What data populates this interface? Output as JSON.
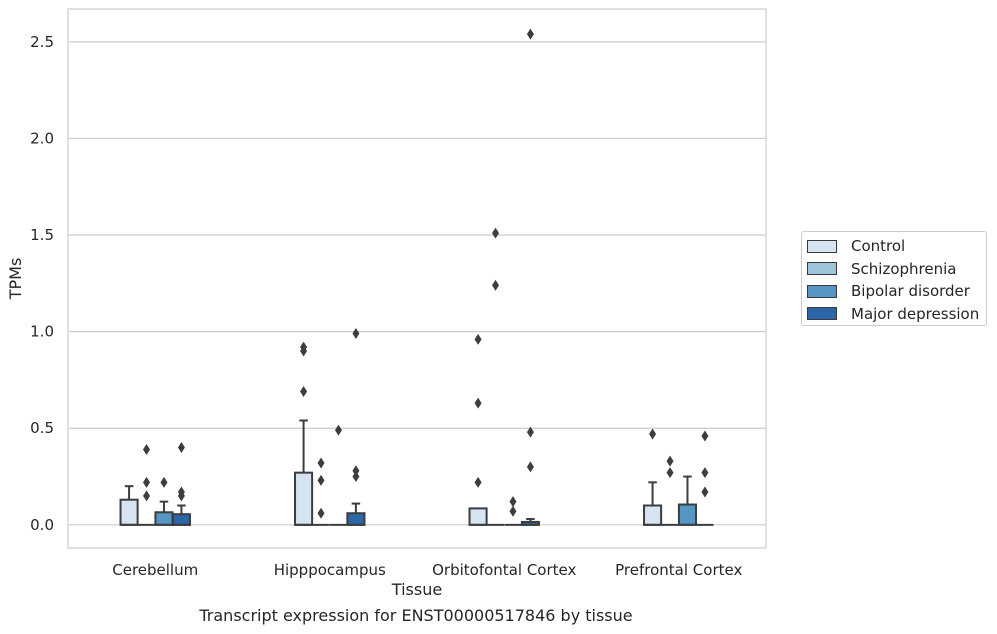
{
  "caption": "Transcript expression for ENST00000517846 by tissue",
  "chart_data": {
    "type": "box",
    "xlabel": "Tissue",
    "ylabel": "TPMs",
    "categories": [
      "Cerebellum",
      "Hipppocampus",
      "Orbitofontal Cortex",
      "Prefrontal Cortex"
    ],
    "ylim": [
      -0.12,
      2.67
    ],
    "yticks": [
      "0.0",
      "0.5",
      "1.0",
      "1.5",
      "2.0",
      "2.5"
    ],
    "grid": true,
    "legend_placement": "center-right, outside plot",
    "series": [
      {
        "name": "Control",
        "color": "#d6e4f2",
        "boxes": [
          {
            "q1": 0.0,
            "median": 0.0,
            "q3": 0.13,
            "whisker_low": 0.0,
            "whisker_high": 0.2,
            "outliers": []
          },
          {
            "q1": 0.0,
            "median": 0.0,
            "q3": 0.27,
            "whisker_low": 0.0,
            "whisker_high": 0.54,
            "outliers": [
              0.69,
              0.9,
              0.92
            ]
          },
          {
            "q1": 0.0,
            "median": 0.0,
            "q3": 0.085,
            "whisker_low": 0.0,
            "whisker_high": 0.085,
            "outliers": [
              0.22,
              0.63,
              0.96
            ]
          },
          {
            "q1": 0.0,
            "median": 0.0,
            "q3": 0.1,
            "whisker_low": 0.0,
            "whisker_high": 0.22,
            "outliers": [
              0.47
            ]
          }
        ]
      },
      {
        "name": "Schizophrenia",
        "color": "#9ec4dc",
        "boxes": [
          {
            "q1": 0.0,
            "median": 0.0,
            "q3": 0.0,
            "whisker_low": 0.0,
            "whisker_high": 0.0,
            "outliers": [
              0.15,
              0.22,
              0.39
            ]
          },
          {
            "q1": 0.0,
            "median": 0.0,
            "q3": 0.0,
            "whisker_low": 0.0,
            "whisker_high": 0.0,
            "outliers": [
              0.06,
              0.23,
              0.32
            ]
          },
          {
            "q1": 0.0,
            "median": 0.0,
            "q3": 0.0,
            "whisker_low": 0.0,
            "whisker_high": 0.0,
            "outliers": [
              1.24,
              1.51
            ]
          },
          {
            "q1": 0.0,
            "median": 0.0,
            "q3": 0.0,
            "whisker_low": 0.0,
            "whisker_high": 0.0,
            "outliers": [
              0.27,
              0.33
            ]
          }
        ]
      },
      {
        "name": "Bipolar disorder",
        "color": "#5696c4",
        "boxes": [
          {
            "q1": 0.0,
            "median": 0.0,
            "q3": 0.065,
            "whisker_low": 0.0,
            "whisker_high": 0.12,
            "outliers": [
              0.22
            ]
          },
          {
            "q1": 0.0,
            "median": 0.0,
            "q3": 0.0,
            "whisker_low": 0.0,
            "whisker_high": 0.0,
            "outliers": [
              0.49
            ]
          },
          {
            "q1": 0.0,
            "median": 0.0,
            "q3": 0.0,
            "whisker_low": 0.0,
            "whisker_high": 0.0,
            "outliers": [
              0.07,
              0.12
            ]
          },
          {
            "q1": 0.0,
            "median": 0.0,
            "q3": 0.105,
            "whisker_low": 0.0,
            "whisker_high": 0.25,
            "outliers": []
          }
        ]
      },
      {
        "name": "Major depression",
        "color": "#2a66a8",
        "boxes": [
          {
            "q1": 0.0,
            "median": 0.0,
            "q3": 0.055,
            "whisker_low": 0.0,
            "whisker_high": 0.1,
            "outliers": [
              0.15,
              0.17,
              0.4
            ]
          },
          {
            "q1": 0.0,
            "median": 0.0,
            "q3": 0.06,
            "whisker_low": 0.0,
            "whisker_high": 0.11,
            "outliers": [
              0.25,
              0.28,
              0.99
            ]
          },
          {
            "q1": 0.0,
            "median": 0.0,
            "q3": 0.015,
            "whisker_low": 0.0,
            "whisker_high": 0.03,
            "outliers": [
              0.3,
              0.48,
              2.54
            ]
          },
          {
            "q1": 0.0,
            "median": 0.0,
            "q3": 0.0,
            "whisker_low": 0.0,
            "whisker_high": 0.0,
            "outliers": [
              0.17,
              0.27,
              0.46
            ]
          }
        ]
      }
    ]
  }
}
